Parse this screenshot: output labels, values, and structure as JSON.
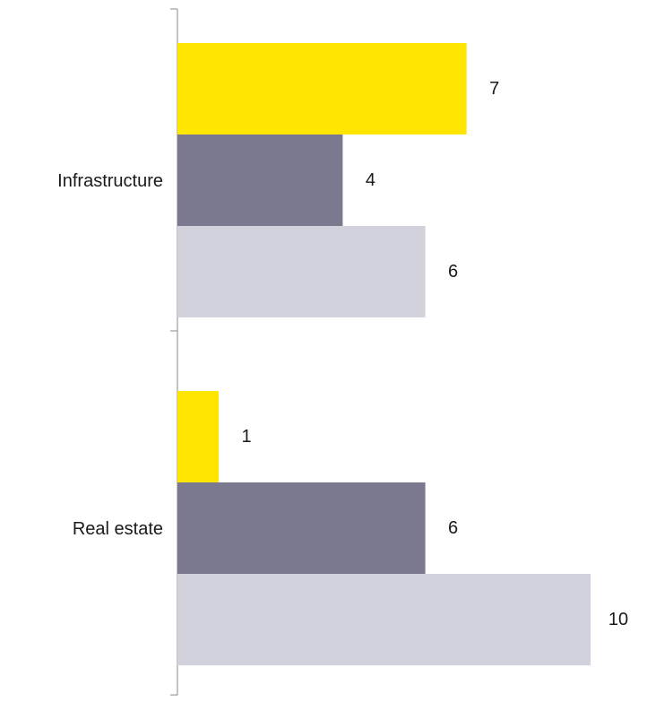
{
  "chart_data": {
    "type": "bar",
    "orientation": "horizontal",
    "categories": [
      "Infrastructure",
      "Real estate"
    ],
    "series": [
      {
        "values": [
          7,
          1
        ],
        "color": "#FFE600"
      },
      {
        "values": [
          4,
          6
        ],
        "color": "#7A798F"
      },
      {
        "values": [
          6,
          10
        ],
        "color": "#D2D2DC"
      }
    ],
    "xlim": [
      0,
      10
    ],
    "legend": false,
    "grid": false,
    "data_labels": true
  }
}
